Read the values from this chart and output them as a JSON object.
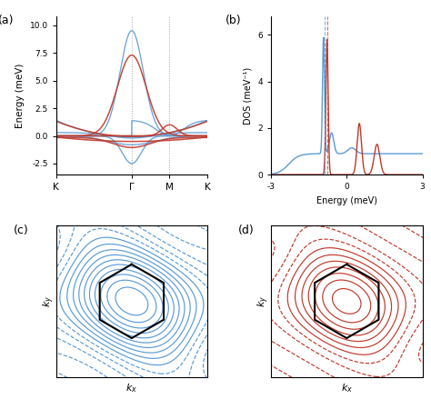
{
  "title_a": "(a)",
  "title_b": "(b)",
  "title_c": "(c)",
  "title_d": "(d)",
  "panel_a": {
    "ylabel": "Energy (meV)",
    "yticks": [
      -2.5,
      0.0,
      2.5,
      5.0,
      7.5,
      10.0
    ],
    "ylim": [
      -3.5,
      10.8
    ],
    "xtick_labels": [
      "K",
      "Γ",
      "M",
      "K"
    ],
    "color_blue": "#5b9bd5",
    "color_red": "#c0392b"
  },
  "panel_b": {
    "ylabel": "DOS (meV⁻¹)",
    "xlabel": "Energy (meV)",
    "yticks": [
      0,
      2,
      4,
      6
    ],
    "ylim": [
      0,
      6.8
    ],
    "xlim": [
      -3,
      3
    ],
    "xticks": [
      -3,
      0,
      3
    ],
    "color_blue": "#5b9bd5",
    "color_red": "#c0392b"
  },
  "panel_c": {
    "xlabel": "$k_x$",
    "ylabel": "$k_y$",
    "color_blue": "#5b9bd5",
    "hex_color": "#000000"
  },
  "panel_d": {
    "xlabel": "$k_x$",
    "ylabel": "$k_y$",
    "color_red": "#c0392b",
    "hex_color": "#000000"
  },
  "fig_bg": "#ffffff"
}
